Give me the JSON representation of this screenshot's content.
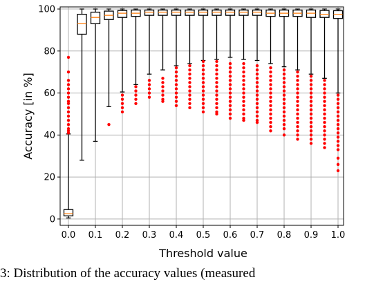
{
  "chart_data": {
    "type": "box",
    "xlabel": "Threshold value",
    "ylabel": "Accuracy [in %]",
    "ylim": [
      -3,
      101
    ],
    "yticks": [
      0,
      20,
      40,
      60,
      80,
      100
    ],
    "grid": true,
    "box_color": "#000000",
    "median_color": "#ff7f0e",
    "outlier_color": "#ff0000",
    "grid_color": "#b0b0b0",
    "x_tick_labels": [
      "0.0",
      "0.1",
      "0.2",
      "0.3",
      "0.4",
      "0.5",
      "0.6",
      "0.7",
      "0.8",
      "0.9",
      "1.0"
    ],
    "categories": [
      "0.0",
      "0.05",
      "0.1",
      "0.15",
      "0.2",
      "0.25",
      "0.3",
      "0.35",
      "0.4",
      "0.45",
      "0.5",
      "0.55",
      "0.6",
      "0.65",
      "0.7",
      "0.75",
      "0.8",
      "0.85",
      "0.9",
      "0.95",
      "1.0"
    ],
    "boxes": [
      {
        "x": "0.0",
        "whislo": 0.5,
        "q1": 1.5,
        "med": 2.5,
        "q3": 4.5,
        "whishi": 40.5
      },
      {
        "x": "0.05",
        "whislo": 28,
        "q1": 88,
        "med": 93,
        "q3": 97.5,
        "whishi": 100
      },
      {
        "x": "0.1",
        "whislo": 37,
        "q1": 93,
        "med": 96,
        "q3": 98.5,
        "whishi": 100
      },
      {
        "x": "0.15",
        "whislo": 53.5,
        "q1": 95,
        "med": 97,
        "q3": 99,
        "whishi": 100
      },
      {
        "x": "0.2",
        "whislo": 60.5,
        "q1": 96,
        "med": 98,
        "q3": 99.3,
        "whishi": 100
      },
      {
        "x": "0.25",
        "whislo": 64,
        "q1": 96.5,
        "med": 98,
        "q3": 99.5,
        "whishi": 100
      },
      {
        "x": "0.3",
        "whislo": 69,
        "q1": 97,
        "med": 98.5,
        "q3": 99.5,
        "whishi": 100
      },
      {
        "x": "0.35",
        "whislo": 71,
        "q1": 97,
        "med": 98.5,
        "q3": 99.5,
        "whishi": 100
      },
      {
        "x": "0.4",
        "whislo": 73,
        "q1": 97,
        "med": 98.5,
        "q3": 99.5,
        "whishi": 100
      },
      {
        "x": "0.45",
        "whislo": 74,
        "q1": 97,
        "med": 98.5,
        "q3": 99.5,
        "whishi": 100
      },
      {
        "x": "0.5",
        "whislo": 75.5,
        "q1": 97,
        "med": 98.5,
        "q3": 99.5,
        "whishi": 100
      },
      {
        "x": "0.55",
        "whislo": 76,
        "q1": 97,
        "med": 98.5,
        "q3": 99.5,
        "whishi": 100
      },
      {
        "x": "0.6",
        "whislo": 77,
        "q1": 97,
        "med": 98.5,
        "q3": 99.5,
        "whishi": 100
      },
      {
        "x": "0.65",
        "whislo": 76,
        "q1": 97,
        "med": 98.5,
        "q3": 99.5,
        "whishi": 100
      },
      {
        "x": "0.7",
        "whislo": 75.5,
        "q1": 97,
        "med": 98.5,
        "q3": 99.5,
        "whishi": 100
      },
      {
        "x": "0.75",
        "whislo": 74,
        "q1": 96.5,
        "med": 98,
        "q3": 99.5,
        "whishi": 100
      },
      {
        "x": "0.8",
        "whislo": 72.5,
        "q1": 96.5,
        "med": 98,
        "q3": 99.5,
        "whishi": 100
      },
      {
        "x": "0.85",
        "whislo": 71,
        "q1": 96.5,
        "med": 98,
        "q3": 99.5,
        "whishi": 100
      },
      {
        "x": "0.9",
        "whislo": 69,
        "q1": 96,
        "med": 98,
        "q3": 99.5,
        "whishi": 100
      },
      {
        "x": "0.95",
        "whislo": 67,
        "q1": 96,
        "med": 97.5,
        "q3": 99.3,
        "whishi": 100
      },
      {
        "x": "1.0",
        "whislo": 60,
        "q1": 95.5,
        "med": 97.5,
        "q3": 99.2,
        "whishi": 100
      }
    ],
    "outliers": [
      [
        77,
        70,
        66,
        64,
        62,
        60,
        58,
        56,
        55,
        53,
        51,
        49,
        47,
        45,
        43,
        42,
        41
      ],
      [],
      [],
      [
        45
      ],
      [
        59,
        57,
        55,
        53,
        51
      ],
      [
        63,
        61,
        59,
        57,
        55
      ],
      [
        66,
        64,
        62,
        60,
        58
      ],
      [
        67,
        65,
        63,
        61,
        59,
        57,
        56
      ],
      [
        72,
        70,
        68,
        66,
        64,
        62,
        60,
        58,
        56,
        54
      ],
      [
        73,
        71,
        69,
        67,
        65,
        63,
        61,
        59,
        57,
        55,
        53
      ],
      [
        75,
        73,
        71,
        69,
        67,
        65,
        63,
        61,
        59,
        57,
        55,
        53,
        51
      ],
      [
        75,
        73,
        71,
        69,
        67,
        65,
        63,
        61,
        59,
        57,
        55,
        53,
        51,
        50
      ],
      [
        74,
        72,
        70,
        68,
        66,
        64,
        62,
        60,
        58,
        56,
        54,
        52,
        50,
        48
      ],
      [
        74,
        72,
        70,
        68,
        66,
        64,
        62,
        60,
        58,
        56,
        54,
        52,
        50,
        48,
        47
      ],
      [
        73,
        71,
        69,
        67,
        65,
        63,
        61,
        59,
        57,
        55,
        53,
        51,
        49,
        47,
        46
      ],
      [
        72,
        70,
        68,
        66,
        64,
        62,
        60,
        58,
        56,
        54,
        52,
        50,
        48,
        46,
        44,
        42
      ],
      [
        71,
        69,
        67,
        65,
        63,
        61,
        59,
        57,
        55,
        53,
        51,
        49,
        47,
        45,
        43,
        40
      ],
      [
        70,
        68,
        66,
        64,
        62,
        60,
        58,
        56,
        54,
        52,
        50,
        48,
        46,
        44,
        42,
        40,
        38
      ],
      [
        68,
        66,
        64,
        62,
        60,
        58,
        56,
        54,
        52,
        50,
        48,
        46,
        44,
        42,
        40,
        38,
        36
      ],
      [
        66,
        64,
        62,
        60,
        58,
        56,
        54,
        52,
        50,
        48,
        46,
        44,
        42,
        40,
        38,
        36,
        34
      ],
      [
        59,
        57,
        55,
        53,
        51,
        49,
        47,
        45,
        43,
        41,
        39,
        37,
        35,
        33,
        29,
        26,
        23
      ]
    ]
  },
  "caption": "3: Distribution of the accuracy values (measured"
}
